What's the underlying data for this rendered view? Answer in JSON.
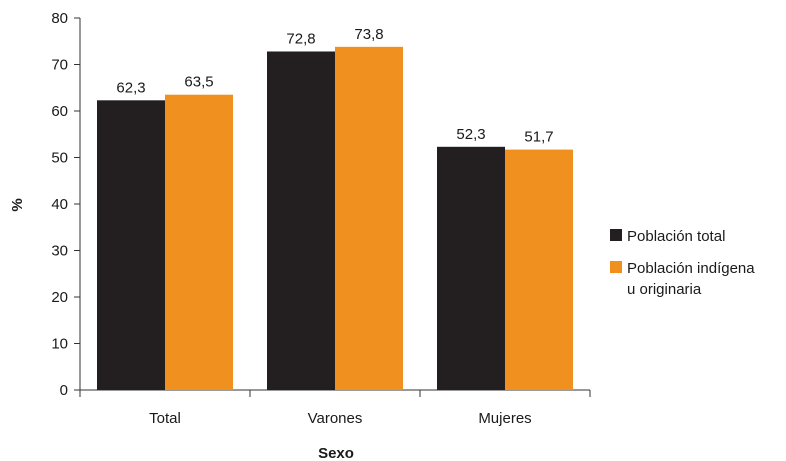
{
  "chart_data": {
    "type": "bar",
    "title": "",
    "xlabel": "Sexo",
    "ylabel": "%",
    "categories": [
      "Total",
      "Varones",
      "Mujeres"
    ],
    "ylim": [
      0,
      80
    ],
    "yticks": [
      0,
      10,
      20,
      30,
      40,
      50,
      60,
      70,
      80
    ],
    "grid": false,
    "legend_position": "right",
    "series": [
      {
        "name": "Población total",
        "color": "#231f20",
        "values": [
          62.3,
          72.8,
          52.3
        ],
        "labels": [
          "62,3",
          "72,8",
          "52,3"
        ]
      },
      {
        "name": "Población indígena u originaria",
        "legend_lines": [
          "Población indígena",
          "u originaria"
        ],
        "color": "#f0901e",
        "values": [
          63.5,
          73.8,
          51.7
        ],
        "labels": [
          "63,5",
          "73,8",
          "51,7"
        ]
      }
    ]
  }
}
